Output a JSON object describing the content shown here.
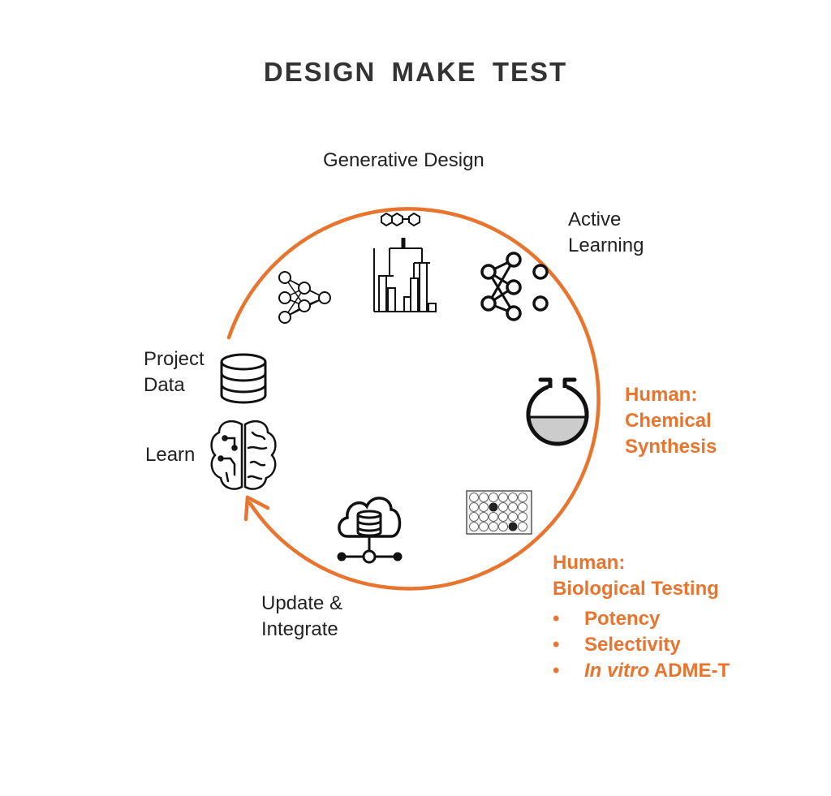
{
  "title": "DESIGN  MAKE  TEST",
  "labels": {
    "generative_design": "Generative Design",
    "active_learning": [
      "Active",
      "Learning"
    ],
    "project_data": [
      "Project",
      "Data"
    ],
    "learn": "Learn",
    "update_integrate": [
      "Update &",
      "Integrate"
    ]
  },
  "human_synthesis": [
    "Human:",
    "Chemical",
    "Synthesis"
  ],
  "human_testing": {
    "heading": [
      "Human:",
      "Biological Testing"
    ],
    "bullets": [
      {
        "italic": "",
        "text": "Potency"
      },
      {
        "italic": "",
        "text": "Selectivity"
      },
      {
        "italic": "In vitro",
        "text": " ADME-T"
      }
    ]
  },
  "colors": {
    "accent": "#e8742e",
    "ink": "#111111"
  },
  "icons": [
    "network-icon",
    "dendrogram-icon",
    "neural-net-icon",
    "database-icon",
    "brain-icon",
    "flask-icon",
    "well-plate-icon",
    "cloud-database-icon"
  ]
}
